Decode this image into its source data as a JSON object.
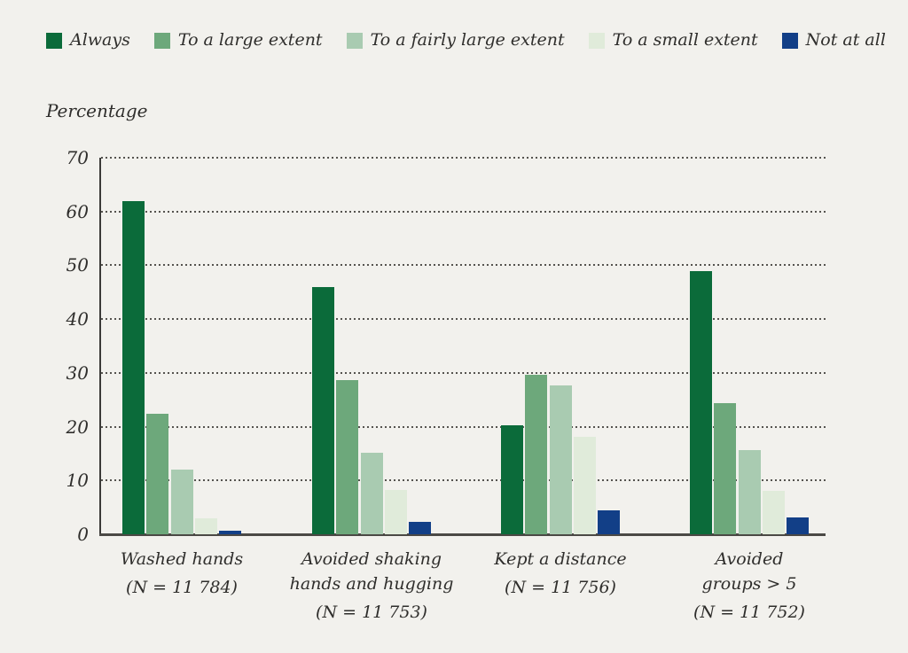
{
  "chart_data": {
    "type": "bar",
    "title": "",
    "ylabel": "Percentage",
    "ylim": [
      0,
      70
    ],
    "yticks": [
      0,
      10,
      20,
      30,
      40,
      50,
      60,
      70
    ],
    "grid": "horizontal-dotted",
    "legend_position": "top",
    "background_color": "#f2f1ed",
    "text_color": "#2f2e2c",
    "axis_color": "#3b3a38",
    "baseline_color": "#4b4945",
    "gridline_color": "#55534f",
    "categories": [
      {
        "lines": [
          "Washed hands"
        ],
        "n_label": "(N = 11 784)"
      },
      {
        "lines": [
          "Avoided shaking",
          "hands and hugging"
        ],
        "n_label": "(N = 11 753)"
      },
      {
        "lines": [
          "Kept a distance"
        ],
        "n_label": "(N = 11 756)"
      },
      {
        "lines": [
          "Avoided",
          "groups > 5"
        ],
        "n_label": "(N = 11 752)"
      }
    ],
    "series": [
      {
        "name": "Always",
        "color": "#0b6b3a",
        "values": [
          62.0,
          46.0,
          20.3,
          49.0
        ]
      },
      {
        "name": "To a large extent",
        "color": "#6da87b",
        "values": [
          22.4,
          28.6,
          29.7,
          24.3
        ]
      },
      {
        "name": "To a fairly large extent",
        "color": "#a9cbb1",
        "values": [
          12.0,
          15.1,
          27.6,
          15.6
        ]
      },
      {
        "name": "To a small extent",
        "color": "#e0ebda",
        "values": [
          3.0,
          8.2,
          18.2,
          8.1
        ]
      },
      {
        "name": "Not at all",
        "color": "#123f87",
        "values": [
          0.7,
          2.3,
          4.4,
          3.1
        ]
      }
    ]
  }
}
